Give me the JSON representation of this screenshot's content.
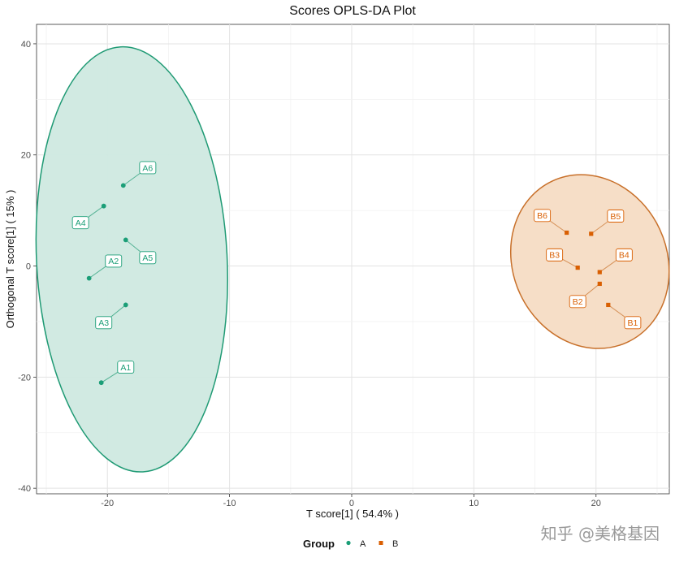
{
  "watermark": "知乎 @美格基因",
  "chart_data": {
    "type": "scatter",
    "title": "Scores OPLS-DA Plot",
    "xlabel": "T score[1] ( 54.4% )",
    "ylabel": "Orthogonal T score[1] ( 15% )",
    "xlim": [
      -25.8,
      26.0
    ],
    "ylim": [
      -41.0,
      43.5
    ],
    "xticks": [
      -20,
      -10,
      0,
      10,
      20
    ],
    "yticks": [
      -40,
      -20,
      0,
      20,
      40
    ],
    "grid": true,
    "legend": {
      "title": "Group",
      "position": "bottom",
      "entries": [
        {
          "label": "A",
          "color": "#1b9e77",
          "shape": "circle"
        },
        {
          "label": "B",
          "color": "#d95f02",
          "shape": "square"
        }
      ]
    },
    "groups": [
      {
        "name": "A",
        "color": "#1b9e77",
        "shape": "circle",
        "ellipse": {
          "cx": -18.0,
          "cy": 1.2,
          "rx": 7.8,
          "ry": 38.3,
          "angle_deg": -3,
          "fill": "#cfe9e0",
          "stroke": "#1f9a74"
        },
        "points": [
          {
            "label": "A1",
            "x": -20.5,
            "y": -21.0,
            "lx": -18.5,
            "ly": -18.2
          },
          {
            "label": "A2",
            "x": -21.5,
            "y": -2.2,
            "lx": -19.5,
            "ly": 0.9
          },
          {
            "label": "A3",
            "x": -18.5,
            "y": -7.0,
            "lx": -20.3,
            "ly": -10.2
          },
          {
            "label": "A4",
            "x": -20.3,
            "y": 10.8,
            "lx": -22.2,
            "ly": 7.8
          },
          {
            "label": "A5",
            "x": -18.5,
            "y": 4.7,
            "lx": -16.7,
            "ly": 1.5
          },
          {
            "label": "A6",
            "x": -18.7,
            "y": 14.5,
            "lx": -16.7,
            "ly": 17.7
          }
        ]
      },
      {
        "name": "B",
        "color": "#d95f02",
        "shape": "square",
        "ellipse": {
          "cx": 19.5,
          "cy": 0.8,
          "rx": 6.3,
          "ry": 16.0,
          "angle_deg": -25,
          "fill": "#f6dcc4",
          "stroke": "#c8702a"
        },
        "points": [
          {
            "label": "B1",
            "x": 21.0,
            "y": -7.0,
            "lx": 23.0,
            "ly": -10.2
          },
          {
            "label": "B2",
            "x": 20.3,
            "y": -3.2,
            "lx": 18.5,
            "ly": -6.4
          },
          {
            "label": "B3",
            "x": 18.5,
            "y": -0.3,
            "lx": 16.6,
            "ly": 2.0
          },
          {
            "label": "B4",
            "x": 20.3,
            "y": -1.1,
            "lx": 22.3,
            "ly": 2.0
          },
          {
            "label": "B5",
            "x": 19.6,
            "y": 5.8,
            "lx": 21.6,
            "ly": 9.0
          },
          {
            "label": "B6",
            "x": 17.6,
            "y": 6.0,
            "lx": 15.6,
            "ly": 9.1
          }
        ]
      }
    ]
  }
}
